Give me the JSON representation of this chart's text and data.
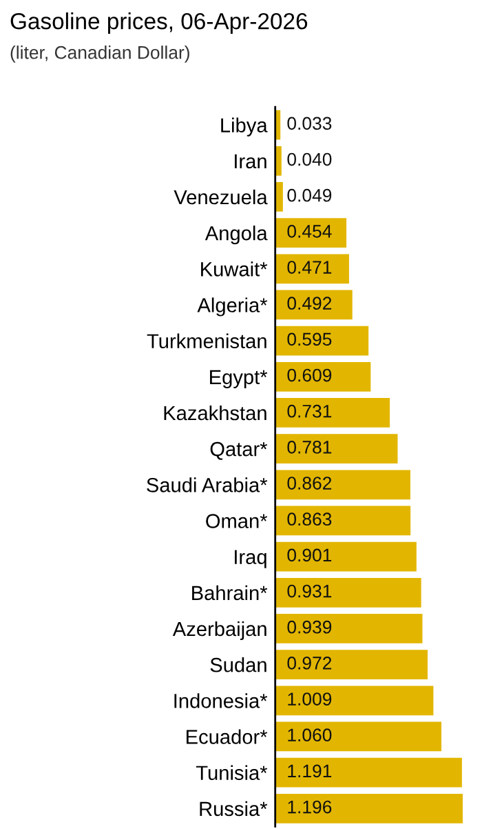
{
  "chart_data": {
    "type": "bar",
    "orientation": "horizontal",
    "title": "Gasoline prices, 06-Apr-2026",
    "subtitle": "(liter, Canadian Dollar)",
    "categories": [
      "Libya",
      "Iran",
      "Venezuela",
      "Angola",
      "Kuwait*",
      "Algeria*",
      "Turkmenistan",
      "Egypt*",
      "Kazakhstan",
      "Qatar*",
      "Saudi Arabia*",
      "Oman*",
      "Iraq",
      "Bahrain*",
      "Azerbaijan",
      "Sudan",
      "Indonesia*",
      "Ecuador*",
      "Tunisia*",
      "Russia*"
    ],
    "values": [
      0.033,
      0.04,
      0.049,
      0.454,
      0.471,
      0.492,
      0.595,
      0.609,
      0.731,
      0.781,
      0.862,
      0.863,
      0.901,
      0.931,
      0.939,
      0.972,
      1.009,
      1.06,
      1.191,
      1.196
    ],
    "value_labels": [
      "0.033",
      "0.040",
      "0.049",
      "0.454",
      "0.471",
      "0.492",
      "0.595",
      "0.609",
      "0.731",
      "0.781",
      "0.862",
      "0.863",
      "0.901",
      "0.931",
      "0.939",
      "0.972",
      "1.009",
      "1.060",
      "1.191",
      "1.196"
    ],
    "color": "#e2b600",
    "grid": false,
    "legend": false
  }
}
